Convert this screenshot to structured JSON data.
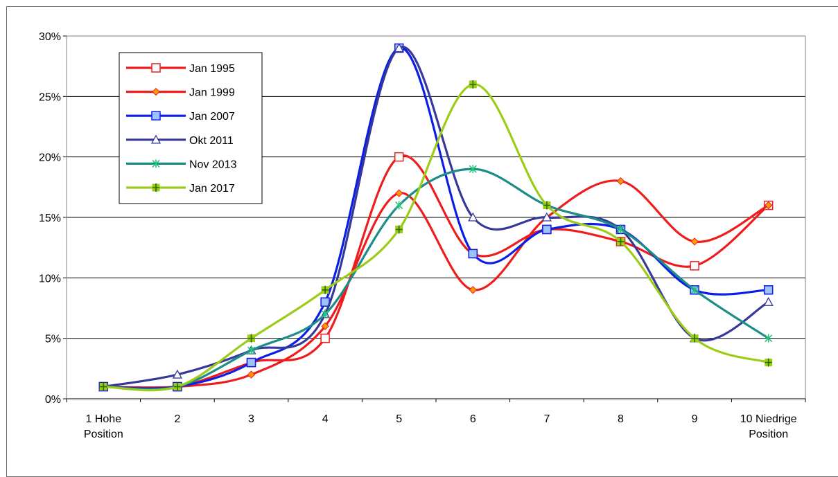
{
  "page": {
    "title_clipped": ""
  },
  "chart_data": {
    "type": "line",
    "categories": [
      "1 Hohe Position",
      "2",
      "3",
      "4",
      "5",
      "6",
      "7",
      "8",
      "9",
      "10 Niedrige Position"
    ],
    "x_tick_labels": [
      [
        "1 Hohe",
        "Position"
      ],
      [
        "2"
      ],
      [
        "3"
      ],
      [
        "4"
      ],
      [
        "5"
      ],
      [
        "6"
      ],
      [
        "7"
      ],
      [
        "8"
      ],
      [
        "9"
      ],
      [
        "10 Niedrige",
        "Position"
      ]
    ],
    "y_ticks": [
      "0%",
      "5%",
      "10%",
      "15%",
      "20%",
      "25%",
      "30%"
    ],
    "ylim": [
      0,
      30
    ],
    "y_unit": "%",
    "grid": "horizontal",
    "legend_position": "top-left",
    "smoothed": true,
    "series": [
      {
        "name": "Jan 1995",
        "color": "#ee1c1c",
        "marker": "open-square",
        "values": [
          1,
          1,
          3,
          5,
          20,
          12,
          14,
          13,
          11,
          16
        ]
      },
      {
        "name": "Jan 1999",
        "color": "#ee1c1c",
        "marker": "diamond",
        "marker_fill": "#ff9a00",
        "values": [
          1,
          1,
          2,
          6,
          17,
          9,
          15,
          18,
          13,
          16
        ]
      },
      {
        "name": "Jan 2007",
        "color": "#0a1ee6",
        "marker": "square",
        "marker_fill": "#9dc3ff",
        "values": [
          1,
          1,
          3,
          8,
          29,
          12,
          14,
          14,
          9,
          9
        ]
      },
      {
        "name": "Okt 2011",
        "color": "#37399a",
        "marker": "open-triangle",
        "values": [
          1,
          2,
          4,
          7,
          29,
          15,
          15,
          14,
          5,
          8
        ]
      },
      {
        "name": "Nov 2013",
        "color": "#1b8c86",
        "marker": "asterisk",
        "marker_color": "#21c77a",
        "values": [
          1,
          1,
          4,
          7,
          16,
          19,
          16,
          14,
          9,
          5
        ]
      },
      {
        "name": "Jan 2017",
        "color": "#9ccc18",
        "marker": "plus-square",
        "marker_fill": "#9ccc18",
        "marker_color": "#2d6a00",
        "values": [
          1,
          1,
          5,
          9,
          14,
          26,
          16,
          13,
          5,
          3
        ]
      }
    ]
  }
}
